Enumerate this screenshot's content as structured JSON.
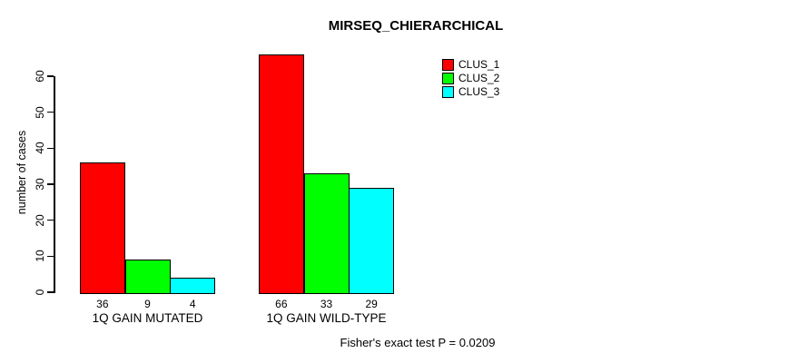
{
  "title": "MIRSEQ_CHIERARCHICAL",
  "footer_note": "Fisher's exact test P = 0.0209",
  "chart_data": {
    "type": "bar",
    "title": "MIRSEQ_CHIERARCHICAL",
    "xlabel": "",
    "ylabel": "number of cases",
    "ylim": [
      0,
      60
    ],
    "yticks": [
      0,
      10,
      20,
      30,
      40,
      50,
      60
    ],
    "categories": [
      "1Q GAIN MUTATED",
      "1Q GAIN WILD-TYPE"
    ],
    "series": [
      {
        "name": "CLUS_1",
        "color": "#ff0000",
        "values": [
          36,
          66
        ]
      },
      {
        "name": "CLUS_2",
        "color": "#00ff00",
        "values": [
          9,
          33
        ]
      },
      {
        "name": "CLUS_3",
        "color": "#00ffff",
        "values": [
          4,
          29
        ]
      }
    ],
    "bar_value_labels": [
      [
        36,
        9,
        4
      ],
      [
        66,
        33,
        29
      ]
    ],
    "grid": false,
    "legend_position": "top-right",
    "annotation": "Fisher's exact test P = 0.0209",
    "background": "#ffffff",
    "bar_border_color": "#000000"
  }
}
